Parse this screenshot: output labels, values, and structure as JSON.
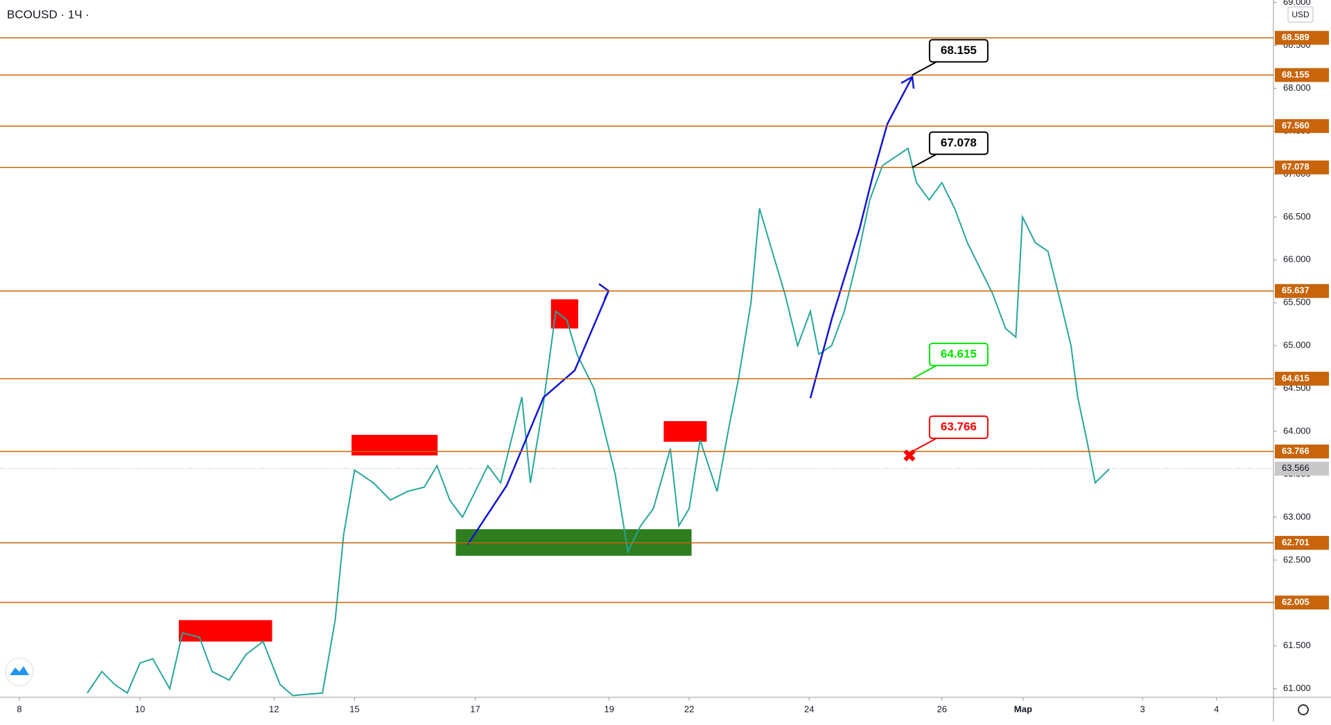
{
  "chart_data": {
    "type": "line",
    "symbol": "BCOUSD · 1Ч ·",
    "currency": "USD",
    "xlim": [
      -0.32,
      20.69
    ],
    "ylim": [
      60.9,
      69.03
    ],
    "xticks": [
      {
        "value": 0,
        "label": "8"
      },
      {
        "value": 1.99,
        "label": "10"
      },
      {
        "value": 4.2,
        "label": "12"
      },
      {
        "value": 5.53,
        "label": "15"
      },
      {
        "value": 7.52,
        "label": "17"
      },
      {
        "value": 9.73,
        "label": "19"
      },
      {
        "value": 11.05,
        "label": "22"
      },
      {
        "value": 13.03,
        "label": "24"
      },
      {
        "value": 15.22,
        "label": "26"
      },
      {
        "value": 16.56,
        "label": "Мар"
      },
      {
        "value": 18.53,
        "label": "3"
      },
      {
        "value": 19.75,
        "label": "4"
      }
    ],
    "yticks": [
      {
        "value": 61,
        "label": "61.000"
      },
      {
        "value": 61.5,
        "label": "61.500"
      },
      {
        "value": 62,
        "label": "62.000"
      },
      {
        "value": 62.5,
        "label": "62.500"
      },
      {
        "value": 63,
        "label": "63.000"
      },
      {
        "value": 63.5,
        "label": "63.500"
      },
      {
        "value": 64,
        "label": "64.000"
      },
      {
        "value": 64.5,
        "label": "64.500"
      },
      {
        "value": 65,
        "label": "65.000"
      },
      {
        "value": 65.5,
        "label": "65.500"
      },
      {
        "value": 66,
        "label": "66.000"
      },
      {
        "value": 66.5,
        "label": "66.500"
      },
      {
        "value": 67,
        "label": "67.000"
      },
      {
        "value": 67.5,
        "label": "67.500"
      },
      {
        "value": 68,
        "label": "68.000"
      },
      {
        "value": 68.5,
        "label": "68.500"
      },
      {
        "value": 69,
        "label": "69.000"
      }
    ],
    "levels": [
      68.589,
      68.155,
      {
        "value": 67.56,
        "label": "67.560"
      },
      67.078,
      65.637,
      64.615,
      63.766,
      62.701,
      62.005
    ],
    "level_color": "#c8640a",
    "last_price": 63.566,
    "callouts": [
      {
        "value": 68.155,
        "x": 14.73,
        "color": "#000000"
      },
      {
        "value": 67.078,
        "x": 14.73,
        "color": "#000000"
      },
      {
        "value": 64.615,
        "x": 14.73,
        "color": "#00e600"
      },
      {
        "value": 63.766,
        "x": 14.73,
        "color": "#ff0000"
      }
    ],
    "zones": [
      {
        "x": [
          5.48,
          6.9
        ],
        "y": [
          63.72,
          63.96
        ],
        "color": "#ff0000"
      },
      {
        "x": [
          8.77,
          9.22
        ],
        "y": [
          65.2,
          65.54
        ],
        "color": "#ff0000"
      },
      {
        "x": [
          10.63,
          11.34
        ],
        "y": [
          63.88,
          64.12
        ],
        "color": "#ff0000"
      },
      {
        "x": [
          2.63,
          4.17
        ],
        "y": [
          61.55,
          61.8
        ],
        "color": "#ff0000"
      },
      {
        "x": [
          7.2,
          11.09
        ],
        "y": [
          62.55,
          62.86
        ],
        "color": "#2e7d1e"
      }
    ],
    "series": [
      {
        "color": "#26a69a",
        "x": [
          1.12,
          1.36,
          1.57,
          1.78,
          1.99,
          2.2,
          2.48,
          2.69,
          2.97,
          3.18,
          3.46,
          3.74,
          4.02,
          4.3,
          4.51,
          5.0,
          5.21,
          5.35,
          5.53,
          5.84,
          6.12,
          6.4,
          6.68,
          6.89,
          7.1,
          7.31,
          7.52,
          7.73,
          7.94,
          8.08,
          8.29,
          8.43,
          8.64,
          8.85,
          9.03,
          9.2,
          9.48,
          9.69,
          9.83,
          10.04,
          10.25,
          10.46,
          10.74,
          10.88,
          11.05,
          11.23,
          11.51,
          11.72,
          11.86,
          12.07,
          12.21,
          12.42,
          12.63,
          12.84,
          13.05,
          13.19,
          13.4,
          13.61,
          13.82,
          14.03,
          14.24,
          14.45,
          14.66,
          14.8,
          15.01,
          15.22,
          15.43,
          15.64,
          15.85,
          16.06,
          16.27,
          16.44,
          16.55,
          16.76,
          16.97,
          17.18,
          17.35,
          17.46,
          17.61,
          17.75,
          17.89,
          17.98
        ],
        "values": [
          60.95,
          61.2,
          61.05,
          60.95,
          61.3,
          61.35,
          61.0,
          61.65,
          61.6,
          61.2,
          61.1,
          61.4,
          61.55,
          61.05,
          60.92,
          60.95,
          61.8,
          62.8,
          63.55,
          63.4,
          63.2,
          63.3,
          63.35,
          63.6,
          63.2,
          63.0,
          63.3,
          63.6,
          63.4,
          63.8,
          64.4,
          63.4,
          64.3,
          65.4,
          65.3,
          64.9,
          64.5,
          63.9,
          63.5,
          62.6,
          62.9,
          63.1,
          63.8,
          62.9,
          63.1,
          63.9,
          63.3,
          64.1,
          64.6,
          65.5,
          66.6,
          66.1,
          65.6,
          65.0,
          65.4,
          64.9,
          65.0,
          65.4,
          66.0,
          66.7,
          67.1,
          67.2,
          67.3,
          66.9,
          66.7,
          66.9,
          66.6,
          66.2,
          65.9,
          65.6,
          65.2,
          65.1,
          66.5,
          66.2,
          66.1,
          65.5,
          65.0,
          64.4,
          63.9,
          63.4,
          63.5,
          63.56
        ]
      }
    ]
  }
}
